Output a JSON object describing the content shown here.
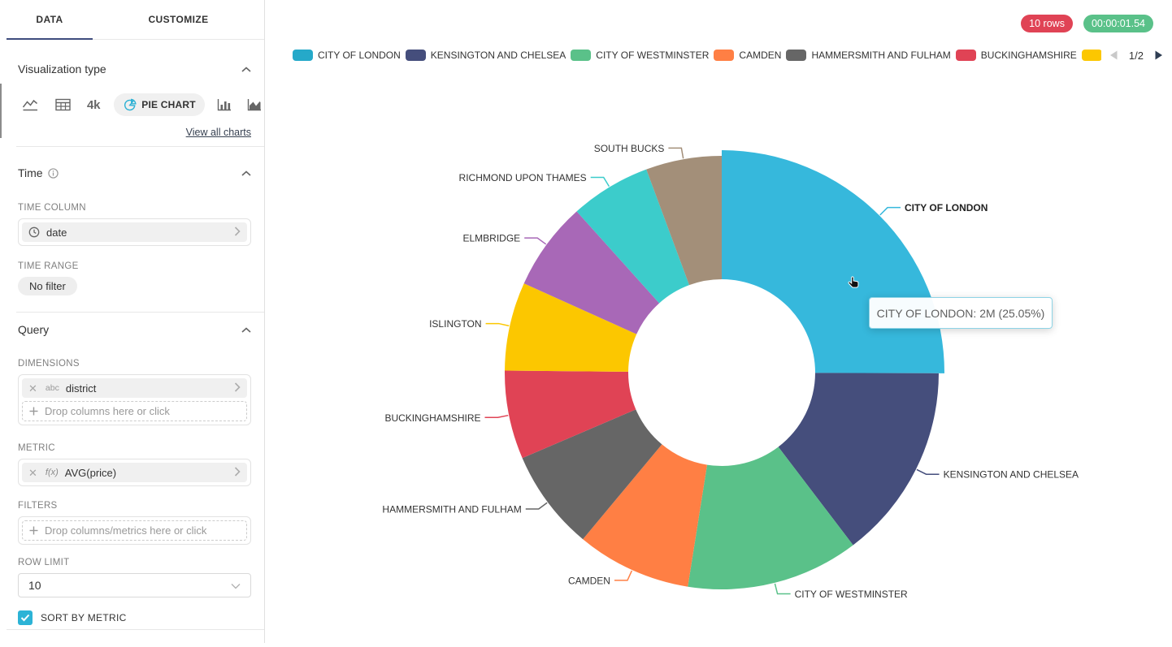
{
  "sidebar": {
    "tabs": {
      "data": "DATA",
      "customize": "CUSTOMIZE"
    },
    "viz": {
      "title": "Visualization type",
      "big_number_label": "4k",
      "selected_label": "PIE CHART",
      "view_all": "View all charts"
    },
    "time": {
      "title": "Time",
      "column_label": "TIME COLUMN",
      "column_value": "date",
      "range_label": "TIME RANGE",
      "range_value": "No filter"
    },
    "query": {
      "title": "Query",
      "dimensions_label": "DIMENSIONS",
      "dimension_type": "abc",
      "dimension_value": "district",
      "dimensions_placeholder": "Drop columns here or click",
      "metric_label": "METRIC",
      "metric_fn": "f(x)",
      "metric_value": "AVG(price)",
      "filters_label": "FILTERS",
      "filters_placeholder": "Drop columns/metrics here or click",
      "row_limit_label": "ROW LIMIT",
      "row_limit_value": "10",
      "sort_label": "SORT BY METRIC",
      "sort_checked": true
    }
  },
  "header": {
    "rows_badge": "10 rows",
    "timer_badge": "00:00:01.54"
  },
  "legend_pager": {
    "page": "1/2"
  },
  "tooltip": {
    "text": "CITY OF LONDON: 2M (25.05%)"
  },
  "chart_data": {
    "type": "pie",
    "donut": true,
    "title": "",
    "dimension": "district",
    "metric": "AVG(price)",
    "categories": [
      "CITY OF LONDON",
      "KENSINGTON AND CHELSEA",
      "CITY OF WESTMINSTER",
      "CAMDEN",
      "HAMMERSMITH AND FULHAM",
      "BUCKINGHAMSHIRE",
      "ISLINGTON",
      "ELMBRIDGE",
      "RICHMOND UPON THAMES",
      "SOUTH BUCKS"
    ],
    "values_percent": [
      25.05,
      14.6,
      12.85,
      8.55,
      7.5,
      6.6,
      6.6,
      6.6,
      6.0,
      5.65
    ],
    "colors": [
      "#25a9c9",
      "#454e7c",
      "#5ac189",
      "#ff7f44",
      "#666666",
      "#e04355",
      "#fcc700",
      "#a868b7",
      "#3ccccb",
      "#a38f79"
    ],
    "highlighted_category": "CITY OF LONDON",
    "highlight_fill": "#36b8dc",
    "highlight_value_label": "2M (25.05%)",
    "legend_visible_full": 6
  }
}
